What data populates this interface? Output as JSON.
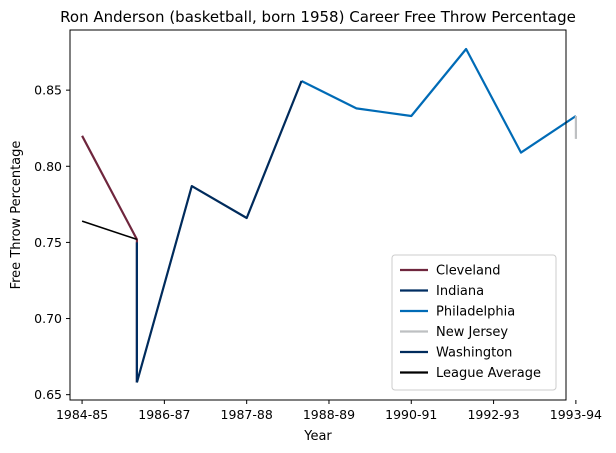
{
  "chart_data": {
    "type": "line",
    "title": "Ron Anderson (basketball, born 1958) Career Free Throw Percentage",
    "xlabel": "Year",
    "ylabel": "Free Throw Percentage",
    "xlim": [
      1984.78,
      1993.82
    ],
    "ylim": [
      0.6465,
      0.8895
    ],
    "x_ticks": [
      {
        "value": 1985,
        "label": "1984-85"
      },
      {
        "value": 1986.5,
        "label": "1986-87"
      },
      {
        "value": 1988,
        "label": "1987-88"
      },
      {
        "value": 1989.5,
        "label": "1988-89"
      },
      {
        "value": 1991,
        "label": "1990-91"
      },
      {
        "value": 1992.5,
        "label": "1992-93"
      },
      {
        "value": 1994,
        "label": "1993-94"
      }
    ],
    "y_ticks": [
      0.65,
      0.7,
      0.75,
      0.8,
      0.85
    ],
    "grid": false,
    "legend_position": "lower-right",
    "series": [
      {
        "name": "Cleveland",
        "color": "#6f263d",
        "x": [
          1985,
          1986,
          1986,
          1986
        ],
        "y": [
          0.82,
          0.752,
          0.75,
          0.658
        ]
      },
      {
        "name": "Indiana",
        "color": "#002d62",
        "x": [
          1986,
          1986
        ],
        "y": [
          0.75,
          0.658
        ]
      },
      {
        "name": "Philadelphia",
        "color": "#006bb6",
        "x": [
          1989,
          1990,
          1991,
          1992,
          1993,
          1994
        ],
        "y": [
          0.856,
          0.838,
          0.833,
          0.877,
          0.809,
          0.833
        ]
      },
      {
        "name": "New Jersey",
        "color": "#bec0c2",
        "x": [
          1994,
          1994
        ],
        "y": [
          0.833,
          0.818
        ]
      },
      {
        "name": "Washington",
        "color": "#002b5c",
        "x": [
          1986,
          1987,
          1988,
          1989
        ],
        "y": [
          0.658,
          0.787,
          0.766,
          0.856
        ]
      },
      {
        "name": "League Average",
        "color": "#000000",
        "x": [
          1985,
          1986
        ],
        "y": [
          0.764,
          0.752
        ]
      }
    ]
  }
}
